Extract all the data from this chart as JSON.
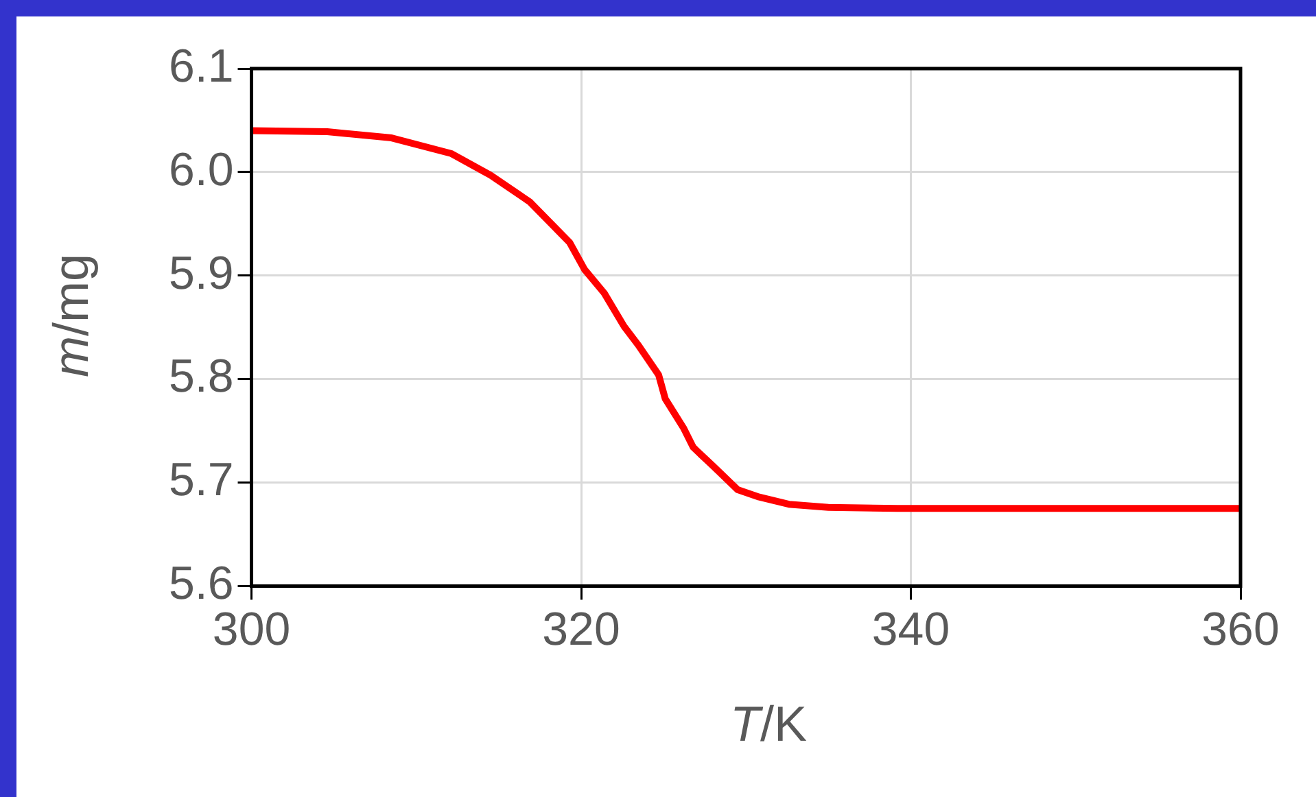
{
  "chart_data": {
    "type": "line",
    "xlabel": "T/K",
    "ylabel": "m/mg",
    "x": [
      300,
      304.6,
      308.5,
      312.1,
      314.5,
      316.9,
      319.3,
      320.2,
      321.4,
      322.6,
      323.5,
      324.7,
      325.1,
      326.2,
      326.8,
      328.0,
      329.5,
      330.8,
      332.6,
      335.0,
      339.2,
      345,
      350,
      355,
      360
    ],
    "series": [
      {
        "color": "#ff0000",
        "values": [
          6.04,
          6.039,
          6.033,
          6.018,
          5.997,
          5.971,
          5.932,
          5.906,
          5.883,
          5.851,
          5.832,
          5.804,
          5.781,
          5.753,
          5.734,
          5.716,
          5.693,
          5.686,
          5.679,
          5.676,
          5.675,
          5.675,
          5.675,
          5.675,
          5.675
        ]
      }
    ],
    "xlim": [
      300,
      360
    ],
    "xticks": [
      300,
      320,
      340,
      360
    ],
    "ylim": [
      5.6,
      6.1
    ],
    "yticks": [
      {
        "value": 5.6,
        "label": "5.6"
      },
      {
        "value": 5.7,
        "label": "5.7"
      },
      {
        "value": 5.8,
        "label": "5.8"
      },
      {
        "value": 5.9,
        "label": "5.9"
      },
      {
        "value": 6.0,
        "label": "6.0"
      },
      {
        "value": 6.1,
        "label": "6.1"
      }
    ],
    "grid": true,
    "legend": false,
    "marker": "none",
    "line_style": "solid"
  }
}
